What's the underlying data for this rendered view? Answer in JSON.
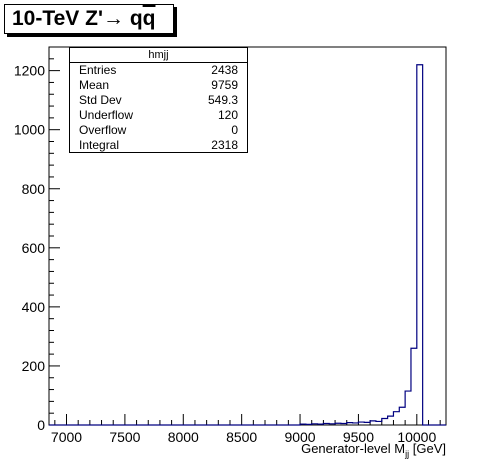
{
  "title": {
    "prefix": "10-TeV Z'",
    "arrow": "→",
    "final": "q",
    "final_bar": "q"
  },
  "stats": {
    "name": "hmjj",
    "rows": [
      {
        "label": "Entries",
        "value": "2438"
      },
      {
        "label": "Mean",
        "value": "9759"
      },
      {
        "label": "Std Dev",
        "value": "549.3"
      },
      {
        "label": "Underflow",
        "value": "120"
      },
      {
        "label": "Overflow",
        "value": "0"
      },
      {
        "label": "Integral",
        "value": "2318"
      }
    ]
  },
  "chart_data": {
    "type": "bar",
    "histogram": true,
    "xlabel_main": "Generator-level M",
    "xlabel_sub": "jj",
    "xlabel_unit": "[GeV]",
    "ylabel": "",
    "xlim": [
      6850,
      10250
    ],
    "ylim": [
      0,
      1280
    ],
    "bin_width": 50,
    "xticks": [
      7000,
      7500,
      8000,
      8500,
      9000,
      9500,
      10000
    ],
    "yticks": [
      0,
      200,
      400,
      600,
      800,
      1000,
      1200
    ],
    "line_color": "#000080",
    "bins": [
      {
        "x": 9000,
        "value": 3
      },
      {
        "x": 9050,
        "value": 2
      },
      {
        "x": 9100,
        "value": 4
      },
      {
        "x": 9150,
        "value": 3
      },
      {
        "x": 9200,
        "value": 5
      },
      {
        "x": 9250,
        "value": 4
      },
      {
        "x": 9300,
        "value": 6
      },
      {
        "x": 9350,
        "value": 5
      },
      {
        "x": 9400,
        "value": 8
      },
      {
        "x": 9450,
        "value": 7
      },
      {
        "x": 9500,
        "value": 10
      },
      {
        "x": 9550,
        "value": 9
      },
      {
        "x": 9600,
        "value": 14
      },
      {
        "x": 9650,
        "value": 12
      },
      {
        "x": 9700,
        "value": 22
      },
      {
        "x": 9750,
        "value": 30
      },
      {
        "x": 9800,
        "value": 45
      },
      {
        "x": 9850,
        "value": 60
      },
      {
        "x": 9900,
        "value": 115
      },
      {
        "x": 9950,
        "value": 260
      },
      {
        "x": 10000,
        "value": 1220
      }
    ]
  }
}
